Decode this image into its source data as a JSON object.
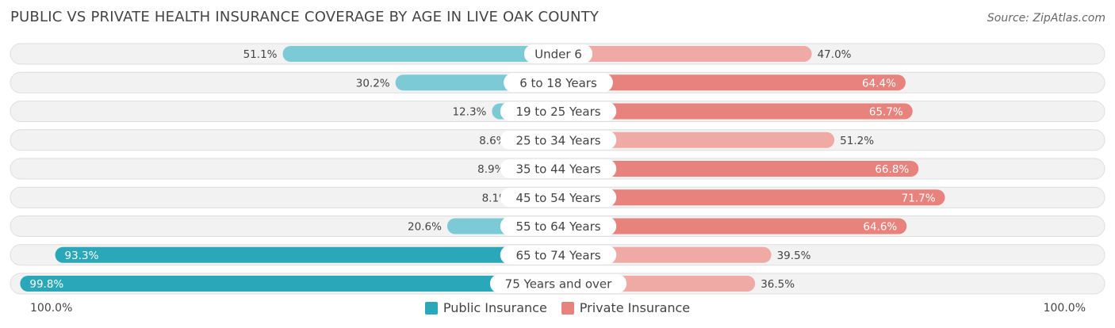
{
  "header": {
    "title": "PUBLIC VS PRIVATE HEALTH INSURANCE COVERAGE BY AGE IN LIVE OAK COUNTY",
    "source": "Source: ZipAtlas.com"
  },
  "colors": {
    "public_dark": "#2aa7b8",
    "public_light": "#7ccad5",
    "private_dark": "#e8827c",
    "private_light": "#f0aaa5",
    "track": "#f2f2f2",
    "track_border": "#dedede"
  },
  "axis": {
    "left_label": "100.0%",
    "right_label": "100.0%"
  },
  "chart_data": {
    "type": "bar",
    "orientation": "horizontal-diverging",
    "title": "PUBLIC VS PRIVATE HEALTH INSURANCE COVERAGE BY AGE IN LIVE OAK COUNTY",
    "categories": [
      "Under 6",
      "6 to 18 Years",
      "19 to 25 Years",
      "25 to 34 Years",
      "35 to 44 Years",
      "45 to 54 Years",
      "55 to 64 Years",
      "65 to 74 Years",
      "75 Years and over"
    ],
    "series": [
      {
        "name": "Public Insurance",
        "values": [
          51.1,
          30.2,
          12.3,
          8.6,
          8.9,
          8.1,
          20.6,
          93.3,
          99.8
        ],
        "labels": [
          "51.1%",
          "30.2%",
          "12.3%",
          "8.6%",
          "8.9%",
          "8.1%",
          "20.6%",
          "93.3%",
          "99.8%"
        ]
      },
      {
        "name": "Private Insurance",
        "values": [
          47.0,
          64.4,
          65.7,
          51.2,
          66.8,
          71.7,
          64.6,
          39.5,
          36.5
        ],
        "labels": [
          "47.0%",
          "64.4%",
          "65.7%",
          "51.2%",
          "66.8%",
          "71.7%",
          "64.6%",
          "39.5%",
          "36.5%"
        ]
      }
    ],
    "xlim": [
      0,
      100
    ],
    "legend_position": "bottom-center"
  }
}
